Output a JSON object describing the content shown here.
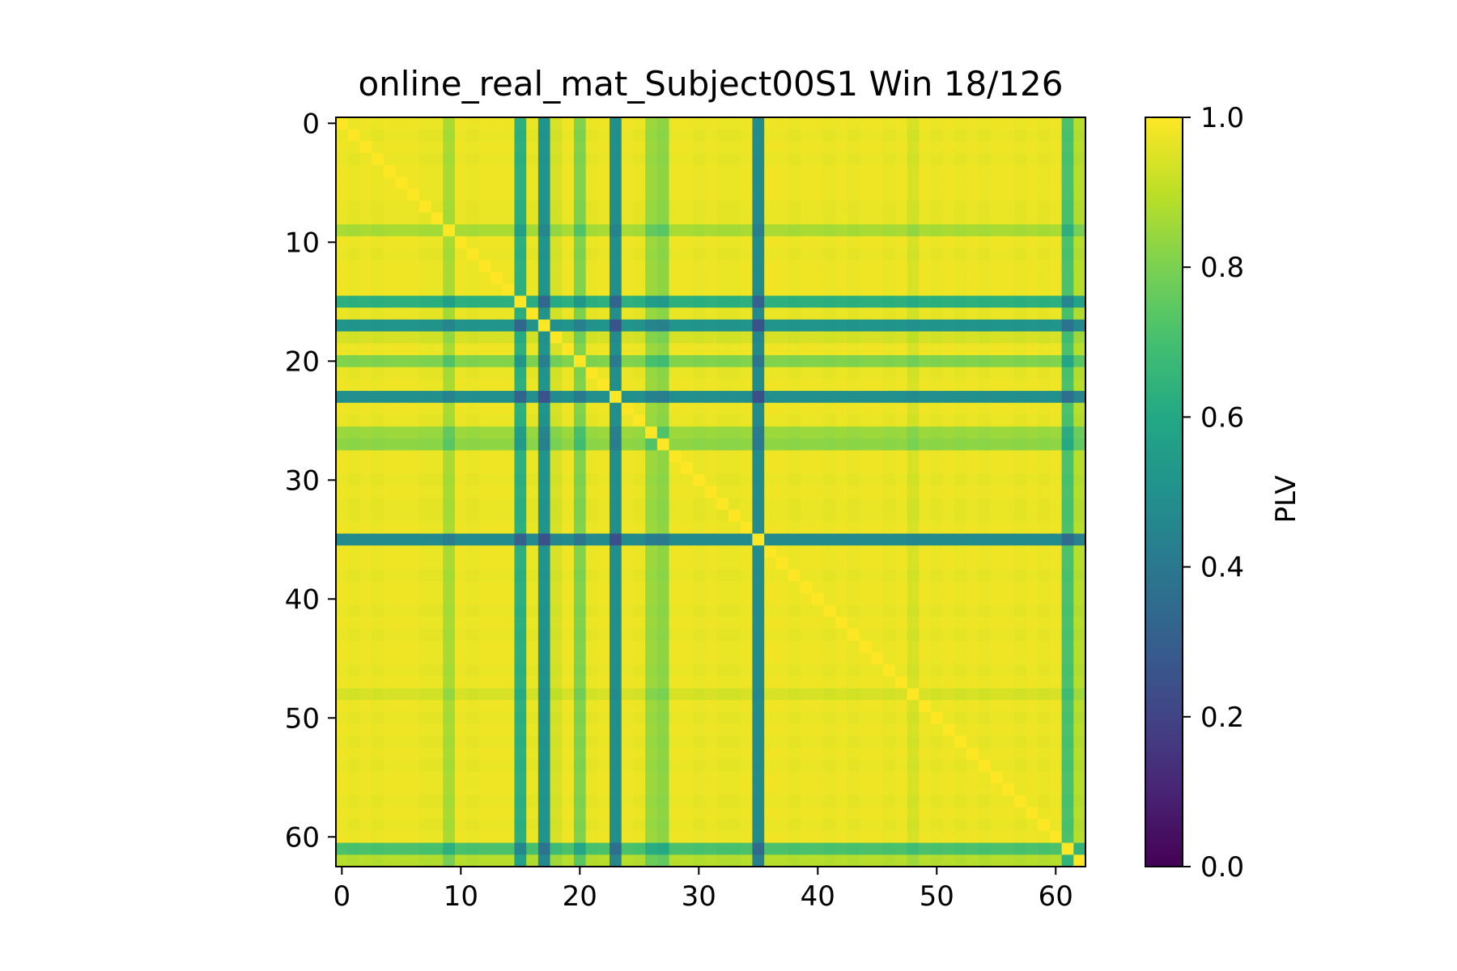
{
  "chart_data": {
    "type": "heatmap",
    "title": "online_real_mat_Subject00S1 Win 18/126",
    "xlabel": "",
    "ylabel": "",
    "size": 63,
    "x_ticks": [
      0,
      10,
      20,
      30,
      40,
      50,
      60
    ],
    "y_ticks": [
      0,
      10,
      20,
      30,
      40,
      50,
      60
    ],
    "colorbar": {
      "label": "PLV",
      "range": [
        0.0,
        1.0
      ],
      "ticks": [
        "0.0",
        "0.2",
        "0.4",
        "0.6",
        "0.8",
        "1.0"
      ],
      "colormap": "viridis"
    },
    "channel_strength": [
      0.99,
      0.98,
      0.99,
      0.98,
      0.99,
      0.99,
      0.99,
      0.98,
      0.98,
      0.88,
      0.99,
      0.98,
      0.99,
      0.99,
      0.99,
      0.64,
      0.98,
      0.52,
      0.95,
      0.99,
      0.82,
      0.98,
      0.99,
      0.5,
      0.99,
      0.98,
      0.86,
      0.84,
      0.99,
      0.99,
      0.98,
      0.99,
      0.98,
      0.98,
      0.99,
      0.48,
      0.99,
      0.99,
      0.98,
      0.99,
      0.99,
      0.98,
      0.99,
      0.98,
      0.99,
      0.99,
      0.98,
      0.99,
      0.95,
      0.99,
      0.98,
      0.99,
      0.98,
      0.99,
      0.98,
      0.99,
      0.99,
      0.98,
      0.99,
      0.98,
      0.99,
      0.72,
      0.9
    ],
    "colors": {
      "axis": "#000000",
      "background": "#ffffff"
    }
  }
}
